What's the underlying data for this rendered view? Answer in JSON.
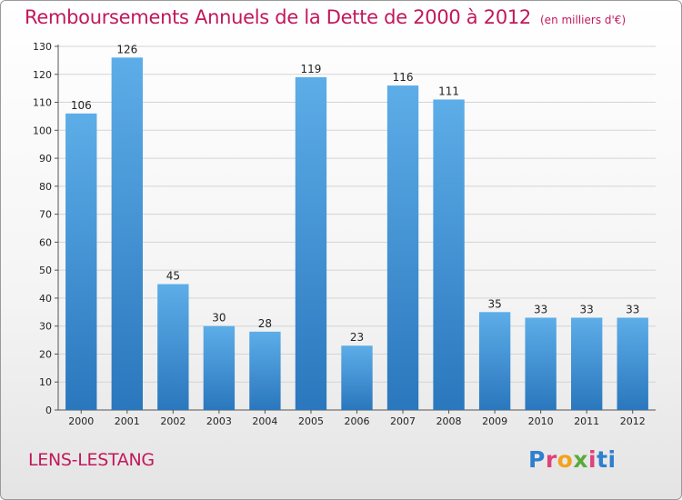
{
  "title": "Remboursements Annuels de la Dette de 2000 à 2012",
  "title_unit": "(en milliers d'€)",
  "town": "LENS-LESTANG",
  "logo": {
    "name": "Proxiti",
    "letters": [
      "P",
      "r",
      "o",
      "x",
      "i",
      "ti"
    ]
  },
  "colors": {
    "title": "#c2185b",
    "bar_light": "#5dade8",
    "bar_dark": "#2a77bd"
  },
  "chart_data": {
    "type": "bar",
    "title": "Remboursements Annuels de la Dette de 2000 à 2012",
    "xlabel": "",
    "ylabel": "",
    "categories": [
      "2000",
      "2001",
      "2002",
      "2003",
      "2004",
      "2005",
      "2006",
      "2007",
      "2008",
      "2009",
      "2010",
      "2011",
      "2012"
    ],
    "values": [
      106,
      126,
      45,
      30,
      28,
      119,
      23,
      116,
      111,
      35,
      33,
      33,
      33
    ],
    "ylim": [
      0,
      130
    ],
    "yticks": [
      0,
      10,
      20,
      30,
      40,
      50,
      60,
      70,
      80,
      90,
      100,
      110,
      120,
      130
    ],
    "grid": true,
    "legend": "none"
  }
}
